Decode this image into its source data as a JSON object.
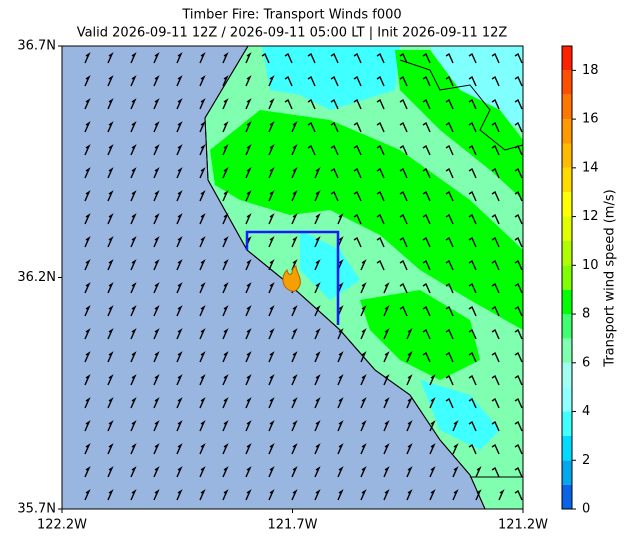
{
  "title": "Timber Fire: Transport Winds f000",
  "subtitle": "Valid 2026-09-11 12Z / 2026-09-11 05:00 LT | Init 2026-09-11 12Z",
  "map": {
    "xlim": [
      -122.2,
      -121.2
    ],
    "ylim": [
      35.7,
      36.7
    ],
    "xticks": [
      {
        "value": -122.2,
        "label": "122.2W"
      },
      {
        "value": -121.7,
        "label": "121.7W"
      },
      {
        "value": -121.2,
        "label": "121.2W"
      }
    ],
    "yticks": [
      {
        "value": 35.7,
        "label": "35.7N"
      },
      {
        "value": 36.2,
        "label": "36.2N"
      },
      {
        "value": 36.7,
        "label": "36.7N"
      }
    ]
  },
  "colorbar": {
    "label": "Transport wind speed (m/s)",
    "levels": [
      0,
      1,
      2,
      3,
      4,
      5,
      6,
      7,
      8,
      9,
      10,
      11,
      12,
      13,
      14,
      15,
      16,
      17,
      18,
      19
    ],
    "colors": [
      "#0a64e6",
      "#00a8ee",
      "#00dcff",
      "#40ffff",
      "#90ffff",
      "#a0fff0",
      "#80ffb0",
      "#40ff70",
      "#00ff00",
      "#80ff00",
      "#b0ff00",
      "#e0ff00",
      "#ffff00",
      "#ffdc00",
      "#ffbb00",
      "#ff9900",
      "#ff7700",
      "#ff5000",
      "#ff2200"
    ],
    "ticks": [
      0,
      2,
      4,
      6,
      8,
      10,
      12,
      14,
      16,
      18
    ]
  }
}
